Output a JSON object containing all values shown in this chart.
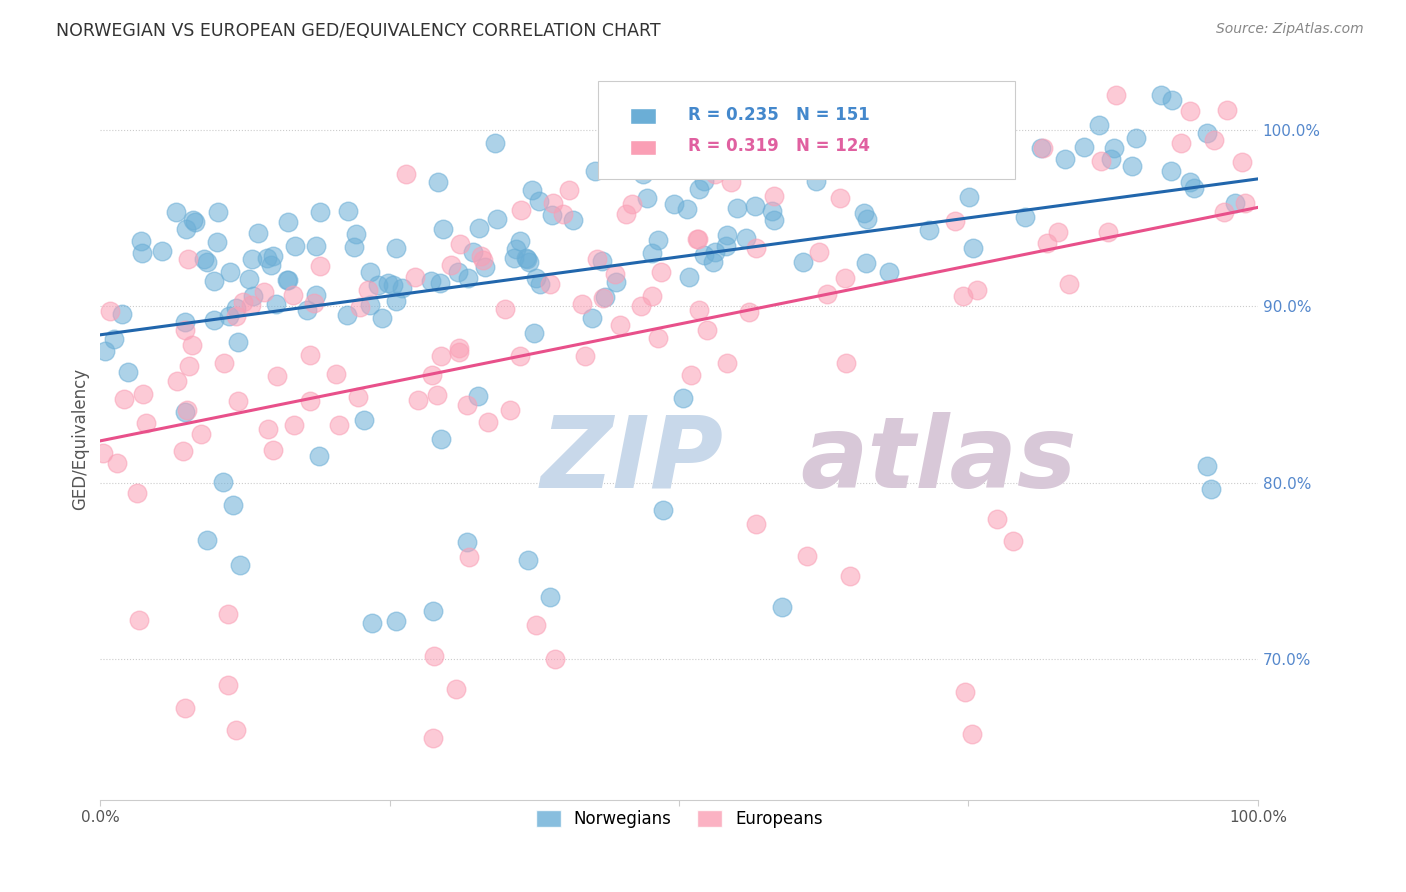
{
  "title": "NORWEGIAN VS EUROPEAN GED/EQUIVALENCY CORRELATION CHART",
  "source": "Source: ZipAtlas.com",
  "ylabel": "GED/Equivalency",
  "right_yticks": [
    "70.0%",
    "80.0%",
    "90.0%",
    "100.0%"
  ],
  "right_ytick_vals": [
    0.7,
    0.8,
    0.9,
    1.0
  ],
  "legend_blue_R": "0.235",
  "legend_blue_N": "151",
  "legend_pink_R": "0.319",
  "legend_pink_N": "124",
  "legend_label_blue": "Norwegians",
  "legend_label_pink": "Europeans",
  "blue_color": "#6baed6",
  "pink_color": "#fa9fb5",
  "blue_line_color": "#2166ac",
  "pink_line_color": "#e8508a",
  "watermark_zip": "ZIP",
  "watermark_atlas": "atlas",
  "watermark_color_zip": "#c8d8ea",
  "watermark_color_atlas": "#d8c8d8",
  "background_color": "#ffffff",
  "xlim": [
    0.0,
    1.0
  ],
  "ylim": [
    0.62,
    1.03
  ],
  "blue_n": 151,
  "pink_n": 124,
  "blue_seed": 10,
  "pink_seed": 20
}
